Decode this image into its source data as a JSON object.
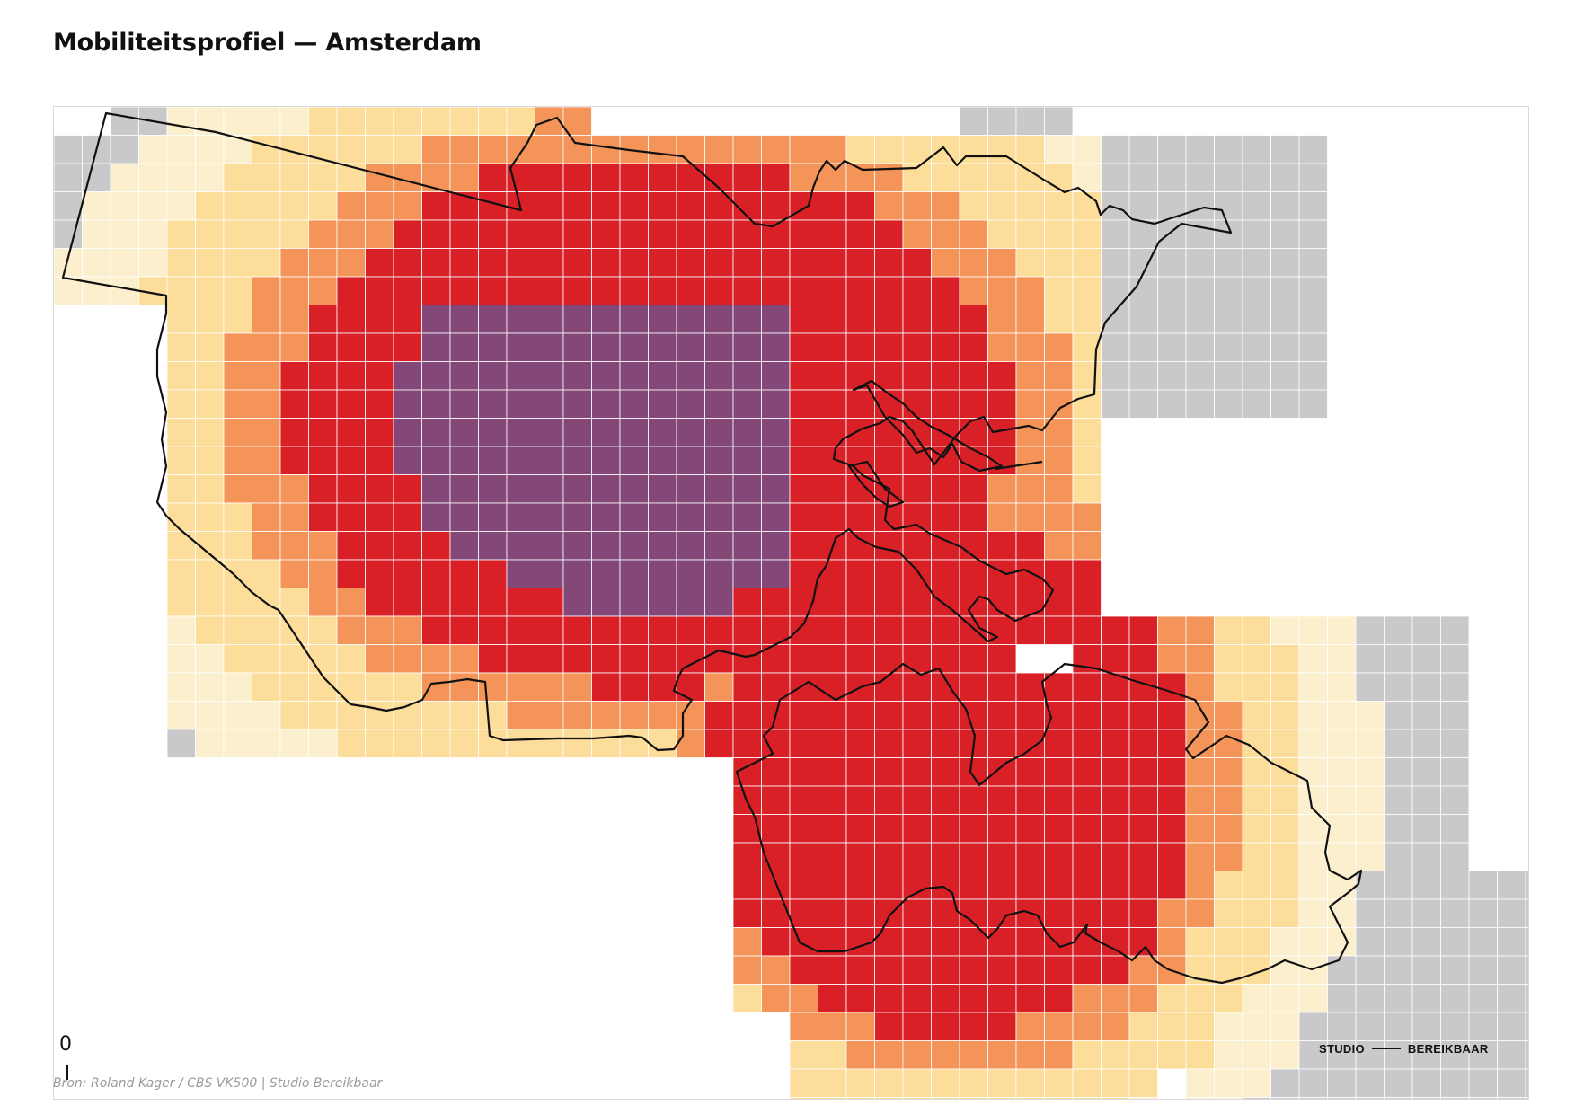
{
  "title": "Mobiliteitsprofiel — Amsterdam",
  "source": "Bron: Roland Kager / CBS VK500 | Studio Bereikbaar",
  "scale_bar_label": "0",
  "logo": {
    "left": "STUDIO",
    "right": "BEREIKBAAR"
  },
  "colors": {
    "background": "#ffffff",
    "grey": "#c9c9cb",
    "very_light": "#fbefcd",
    "light": "#fddd9a",
    "orange": "#f59458",
    "red": "#d92027",
    "purple": "#844878",
    "boundary": "#111111",
    "cell_border": "#ffffff"
  },
  "legend_classes": [
    "grey",
    "very_light",
    "light",
    "orange",
    "red",
    "purple"
  ]
}
